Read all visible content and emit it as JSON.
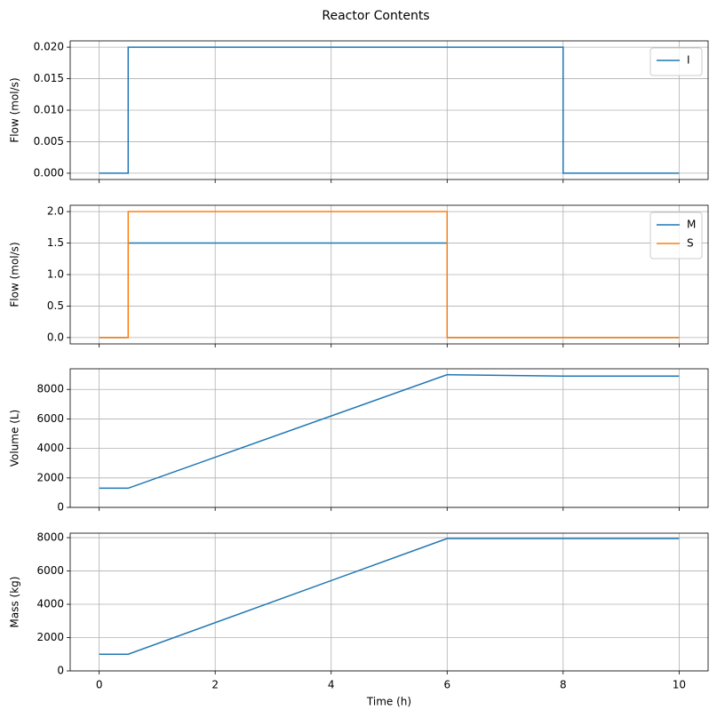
{
  "title": "Reactor Contents",
  "chart_data": [
    {
      "type": "line",
      "ylabel": "Flow (mol/s)",
      "x": [
        0,
        0.5,
        0.5,
        8,
        8,
        10
      ],
      "series": [
        {
          "name": "I",
          "color": "#1f77b4",
          "values": [
            0,
            0,
            0.02,
            0.02,
            0,
            0
          ]
        }
      ],
      "xlim": [
        -0.5,
        10.5
      ],
      "xticks": [
        0,
        2,
        4,
        6,
        8,
        10
      ],
      "xtick_labels": false,
      "ylim": [
        -0.001,
        0.021
      ],
      "yticks": [
        {
          "value": 0,
          "label": "0.000"
        },
        {
          "value": 0.005,
          "label": "0.005"
        },
        {
          "value": 0.01,
          "label": "0.010"
        },
        {
          "value": 0.015,
          "label": "0.015"
        },
        {
          "value": 0.02,
          "label": "0.020"
        }
      ],
      "grid": true,
      "legend": "upper right"
    },
    {
      "type": "line",
      "ylabel": "Flow (mol/s)",
      "x": [
        0,
        0.5,
        0.5,
        6,
        6,
        10
      ],
      "series": [
        {
          "name": "M",
          "color": "#1f77b4",
          "values": [
            0,
            0,
            1.5,
            1.5,
            0,
            0
          ]
        },
        {
          "name": "S",
          "color": "#ff7f0e",
          "values": [
            0,
            0,
            2,
            2,
            0,
            0
          ]
        }
      ],
      "xlim": [
        -0.5,
        10.5
      ],
      "xticks": [
        0,
        2,
        4,
        6,
        8,
        10
      ],
      "xtick_labels": false,
      "ylim": [
        -0.1,
        2.1
      ],
      "yticks": [
        {
          "value": 0,
          "label": "0.0"
        },
        0.5,
        {
          "value": 1,
          "label": "1.0"
        },
        1.5,
        {
          "value": 2,
          "label": "2.0"
        }
      ],
      "grid": true,
      "legend": "upper right"
    },
    {
      "type": "line",
      "ylabel": "Volume (L)",
      "x": [
        0,
        0.5,
        6,
        8,
        10
      ],
      "values": [
        1300,
        1300,
        9000,
        8900,
        8900
      ],
      "color": "#1f77b4",
      "xlim": [
        -0.5,
        10.5
      ],
      "xticks": [
        0,
        2,
        4,
        6,
        8,
        10
      ],
      "xtick_labels": false,
      "ylim": [
        0,
        9400
      ],
      "yticks": [
        0,
        2000,
        4000,
        6000,
        8000
      ],
      "grid": true
    },
    {
      "type": "line",
      "ylabel": "Mass (kg)",
      "xlabel": "Time (h)",
      "x": [
        0,
        0.5,
        6,
        10
      ],
      "values": [
        1000,
        1000,
        7950,
        7950
      ],
      "color": "#1f77b4",
      "xlim": [
        -0.5,
        10.5
      ],
      "xticks": [
        0,
        2,
        4,
        6,
        8,
        10
      ],
      "xtick_labels": true,
      "ylim": [
        0,
        8270
      ],
      "yticks": [
        0,
        2000,
        4000,
        6000,
        8000
      ],
      "grid": true
    }
  ]
}
